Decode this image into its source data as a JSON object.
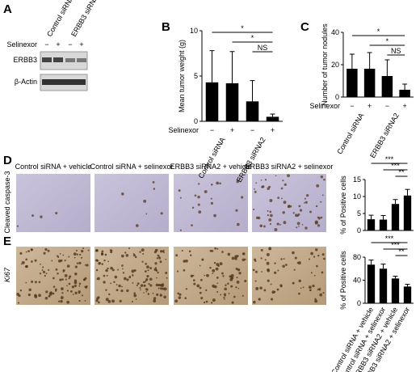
{
  "panels": {
    "labels": [
      "A",
      "B",
      "C",
      "D",
      "E"
    ]
  },
  "blot": {
    "columns": [
      "Control siRNA",
      "ERBB3 siRNA2"
    ],
    "row_label": "Selinexor",
    "treatment": [
      "−",
      "+",
      "−",
      "+"
    ],
    "bands": [
      "ERBB3",
      "β-Actin"
    ]
  },
  "images": {
    "captions": [
      "Control siRNA + vehicle",
      "Control siRNA + selinexor",
      "ERBB3 siRNA2 + vehicle",
      "ERBB3 siRNA2 + selinexor"
    ],
    "row_labels": [
      "Cleaved caspase-3",
      "Ki67"
    ]
  },
  "chart_data": [
    {
      "type": "bar",
      "ylabel": "Mean tumor weight (g)",
      "ylim": [
        0,
        10
      ],
      "yticks": [
        0,
        5,
        10
      ],
      "categories": [
        "−",
        "+",
        "−",
        "+"
      ],
      "x_label": "Selinexor",
      "groups": [
        "Control siRNA",
        "ERBB3 siRNA2"
      ],
      "values": [
        4.3,
        4.2,
        2.2,
        0.5
      ],
      "errors": [
        3.5,
        3.5,
        2.3,
        0.3
      ],
      "annotations": [
        "*",
        "*",
        "NS"
      ],
      "color": "#000000"
    },
    {
      "type": "bar",
      "ylabel": "Number of tumor nodules",
      "ylim": [
        0,
        40
      ],
      "yticks": [
        0,
        20,
        40
      ],
      "categories": [
        "−",
        "+",
        "−",
        "+"
      ],
      "x_label": "Selinexor",
      "groups": [
        "Control siRNA",
        "ERBB3 siRNA2"
      ],
      "values": [
        17.5,
        17.5,
        13,
        4.5
      ],
      "errors": [
        9,
        10,
        10,
        3.5
      ],
      "annotations": [
        "*",
        "*",
        "NS"
      ],
      "color": "#000000"
    },
    {
      "type": "bar",
      "ylabel": "% of Positive cells",
      "ylim": [
        0,
        15
      ],
      "yticks": [
        0,
        5,
        10,
        15
      ],
      "values": [
        3.3,
        3.2,
        7.8,
        10.3
      ],
      "errors": [
        1.2,
        1.2,
        1.3,
        1.8
      ],
      "annotations": [
        "***",
        "***",
        "**"
      ],
      "color": "#000000"
    },
    {
      "type": "bar",
      "ylabel": "% of Positive cells",
      "ylim": [
        0,
        80
      ],
      "yticks": [
        0,
        40,
        80
      ],
      "categories": [
        "Control siRNA + vehicle",
        "Control siRNA + selinexor",
        "ERBB3 siRNA2 + vehicle",
        "ERBB3 siRNA2 + selinexor"
      ],
      "values": [
        67,
        60,
        43,
        29
      ],
      "errors": [
        8,
        8,
        4,
        4
      ],
      "annotations": [
        "***",
        "***",
        "**"
      ],
      "color": "#000000"
    }
  ]
}
